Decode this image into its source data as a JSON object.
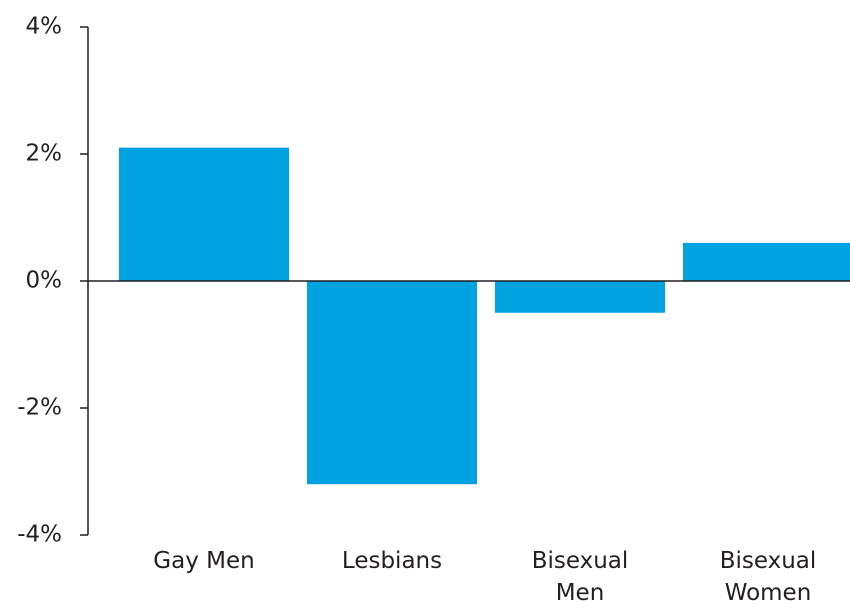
{
  "chart_data": {
    "type": "bar",
    "categories": [
      "Gay Men",
      "Lesbians",
      "Bisexual Men",
      "Bisexual Women"
    ],
    "values": [
      2.1,
      -3.2,
      -0.5,
      0.6
    ],
    "color": "#00a3e0",
    "ylim": [
      -4,
      4
    ],
    "yticks": [
      {
        "value": -4,
        "label": "-4%"
      },
      {
        "value": -2,
        "label": "-2%"
      },
      {
        "value": 0,
        "label": "0%"
      },
      {
        "value": 2,
        "label": "2%"
      },
      {
        "value": 4,
        "label": "4%"
      }
    ]
  }
}
